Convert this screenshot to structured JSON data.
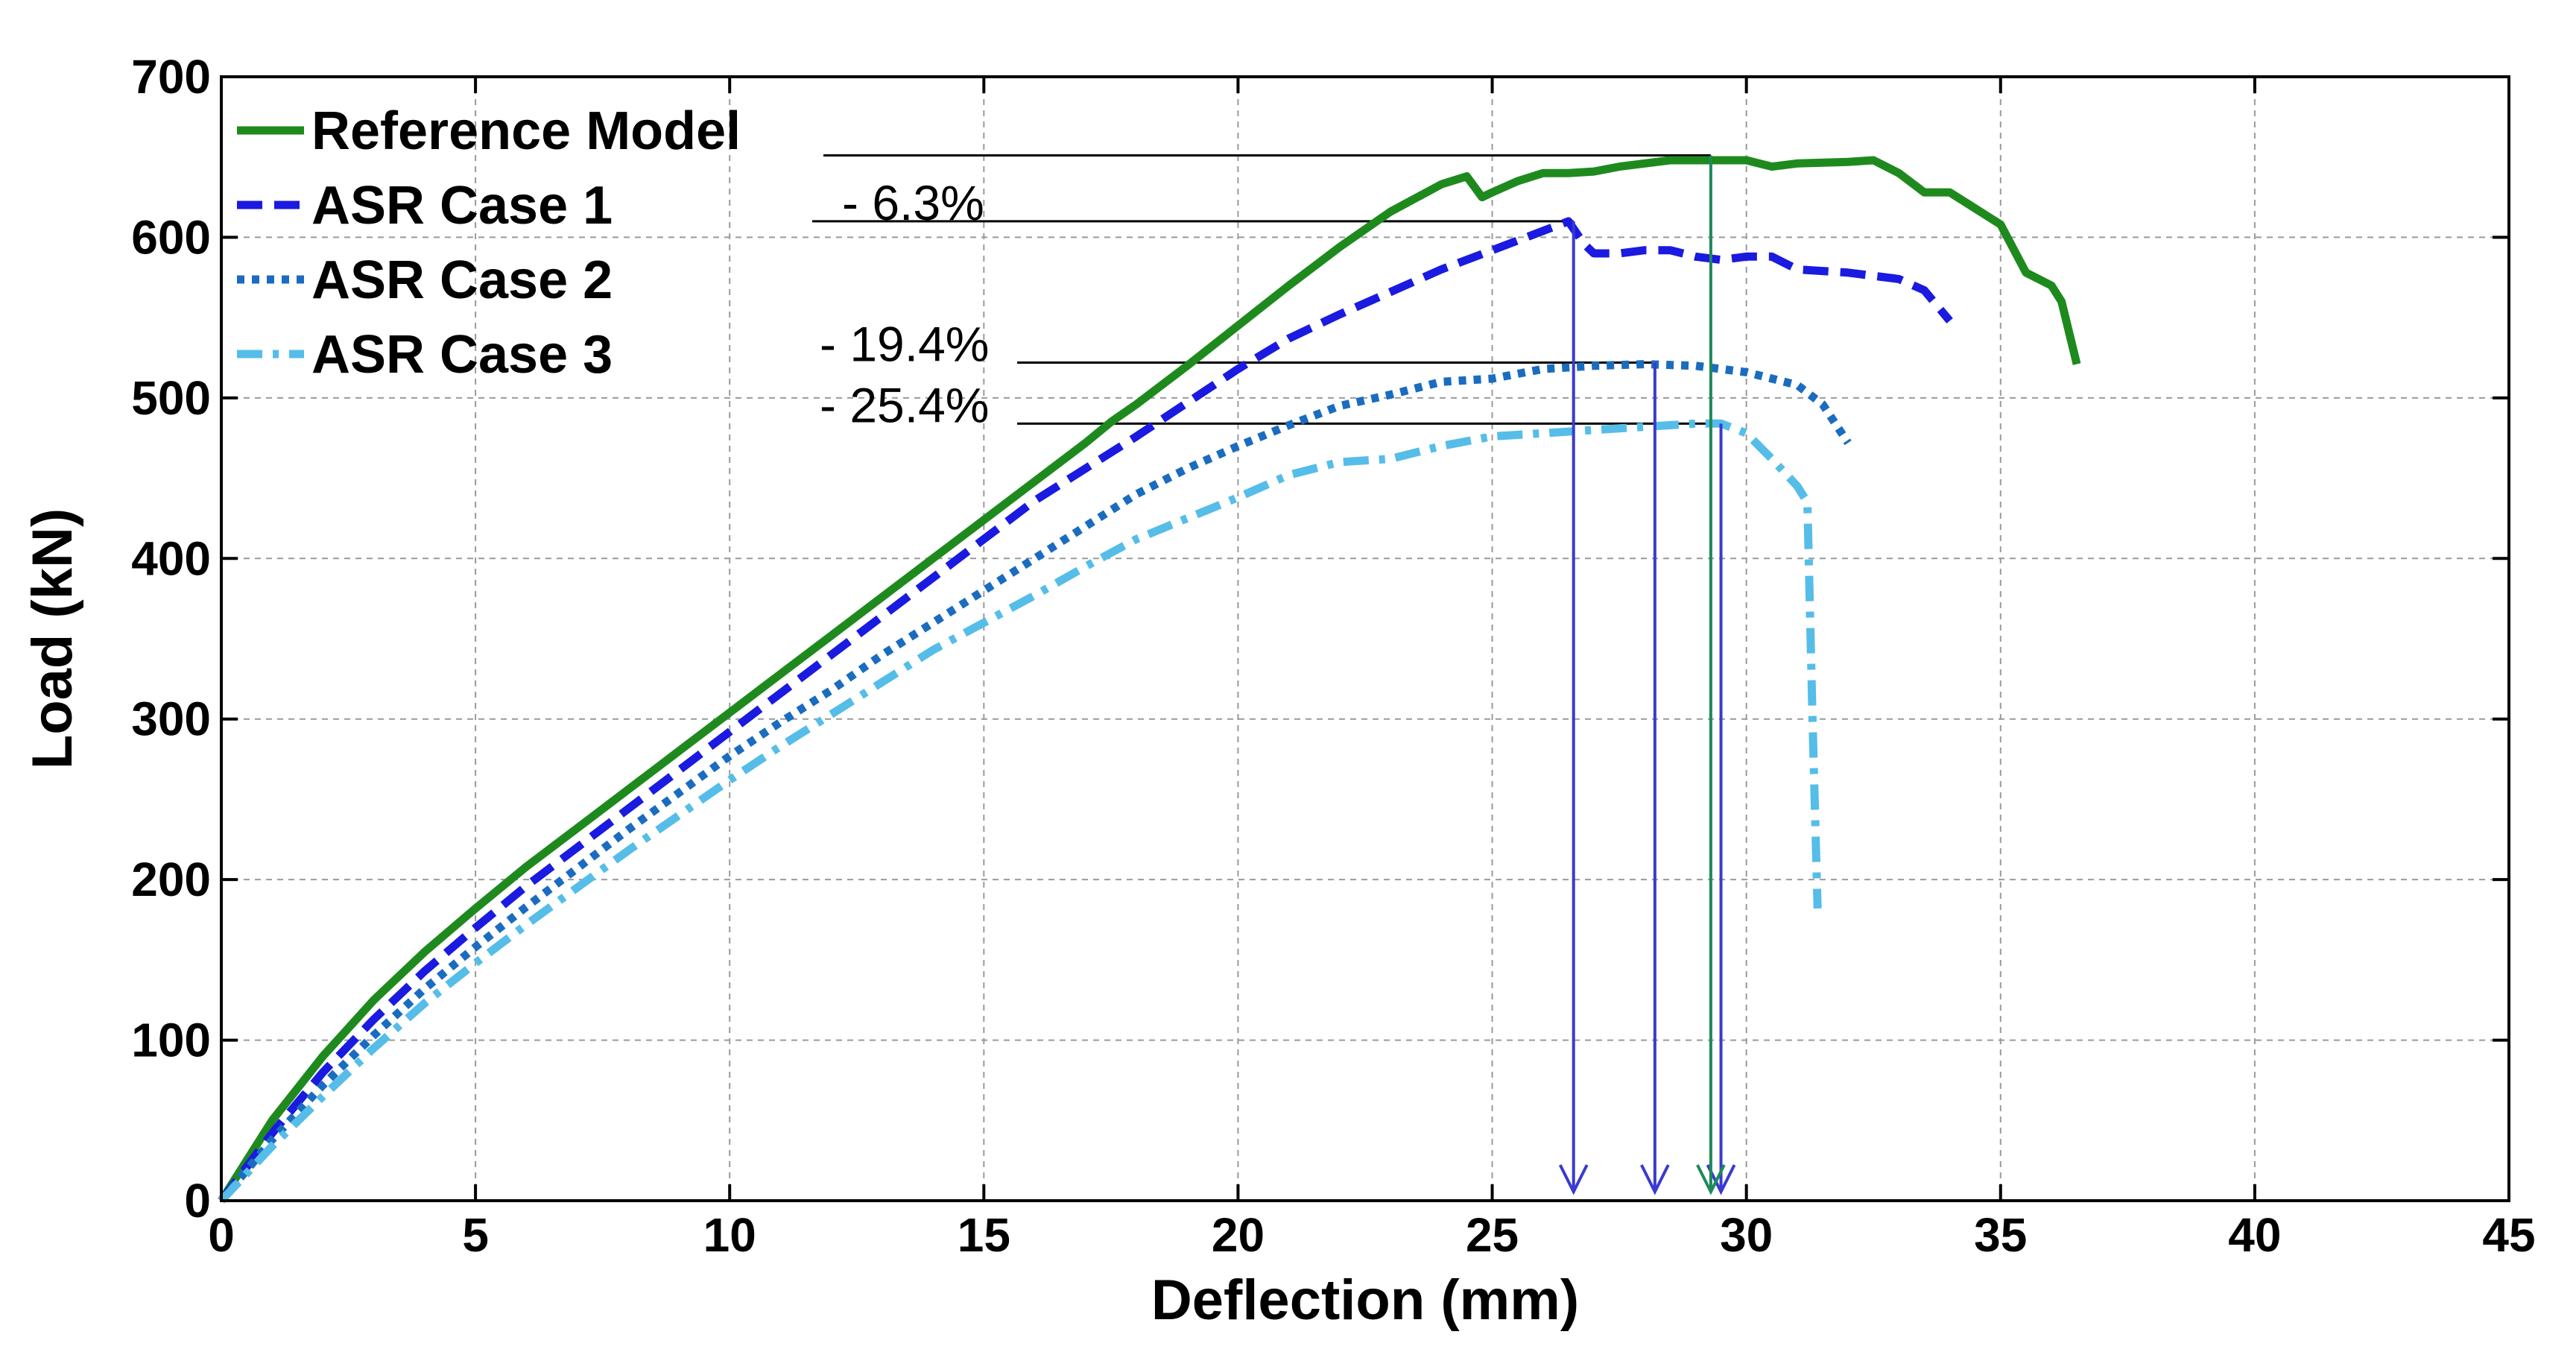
{
  "chart_data": {
    "type": "line",
    "title": "",
    "xlabel": "Deflection (mm)",
    "ylabel": "Load (kN)",
    "xlim": [
      0,
      45
    ],
    "ylim": [
      0,
      700
    ],
    "xticks": [
      0,
      5,
      10,
      15,
      20,
      25,
      30,
      35,
      40,
      45
    ],
    "yticks": [
      0,
      100,
      200,
      300,
      400,
      500,
      600,
      700
    ],
    "grid": true,
    "legend_position": "top-left",
    "series": [
      {
        "name": "Reference Model",
        "color": "#1e8a1e",
        "style": "solid",
        "x": [
          0,
          1,
          2,
          3,
          4,
          5,
          6,
          7,
          8,
          9,
          10,
          11,
          12,
          13,
          14,
          15,
          16,
          17,
          17.5,
          18,
          19,
          20,
          21,
          22,
          23,
          24,
          24.5,
          24.8,
          25,
          25.5,
          26,
          26.5,
          27,
          27.5,
          28,
          28.5,
          29,
          29.5,
          30,
          30.5,
          31,
          32,
          32.5,
          33,
          33.5,
          34,
          34.5,
          35,
          35.5,
          36,
          36.2,
          36.5
        ],
        "y": [
          0,
          50,
          90,
          125,
          155,
          182,
          208,
          232,
          256,
          280,
          304,
          328,
          352,
          376,
          400,
          424,
          448,
          472,
          485,
          496,
          520,
          545,
          570,
          594,
          616,
          633,
          638,
          625,
          628,
          635,
          640,
          640,
          641,
          644,
          646,
          648,
          648,
          648,
          648,
          644,
          646,
          647,
          648,
          640,
          628,
          628,
          618,
          608,
          578,
          570,
          560,
          521
        ]
      },
      {
        "name": "ASR Case 1",
        "color": "#1a1ae0",
        "style": "dashed",
        "x": [
          0,
          1,
          2,
          3,
          4,
          5,
          6,
          7,
          8,
          9,
          10,
          11,
          12,
          13,
          14,
          15,
          16,
          17,
          18,
          19,
          20,
          21,
          22,
          23,
          24,
          25,
          26,
          26.5,
          26.8,
          27,
          27.5,
          28,
          28.5,
          29,
          29.5,
          30,
          30.5,
          31,
          32,
          33,
          33.5,
          34
        ],
        "y": [
          0,
          42,
          80,
          113,
          143,
          170,
          196,
          220,
          244,
          268,
          292,
          316,
          340,
          364,
          388,
          412,
          436,
          456,
          476,
          497,
          518,
          537,
          552,
          566,
          580,
          592,
          604,
          610,
          596,
          590,
          590,
          592,
          592,
          588,
          586,
          588,
          588,
          580,
          578,
          574,
          567,
          548
        ]
      },
      {
        "name": "ASR Case 2",
        "color": "#1a6cc0",
        "style": "dotted",
        "x": [
          0,
          1,
          2,
          3,
          4,
          5,
          6,
          7,
          8,
          9,
          10,
          11,
          12,
          13,
          14,
          15,
          16,
          17,
          18,
          19,
          20,
          21,
          22,
          23,
          24,
          25,
          26,
          27,
          28,
          29,
          30,
          31,
          31.5,
          32
        ],
        "y": [
          0,
          38,
          72,
          103,
          132,
          158,
          183,
          207,
          231,
          254,
          277,
          298,
          318,
          340,
          360,
          380,
          400,
          420,
          440,
          456,
          470,
          483,
          495,
          502,
          510,
          512,
          518,
          520,
          521,
          520,
          516,
          508,
          496,
          472
        ]
      },
      {
        "name": "ASR Case 3",
        "color": "#55bde8",
        "style": "dashdot",
        "x": [
          0,
          1,
          2,
          3,
          4,
          5,
          6,
          7,
          8,
          9,
          10,
          11,
          12,
          13,
          14,
          15,
          16,
          17,
          18,
          19,
          20,
          21,
          22,
          23,
          24,
          25,
          26,
          27,
          28,
          29,
          29.5,
          30,
          30.5,
          31,
          31.2,
          31.3,
          31.4
        ],
        "y": [
          0,
          34,
          65,
          95,
          123,
          148,
          172,
          195,
          218,
          240,
          262,
          283,
          303,
          323,
          343,
          360,
          377,
          395,
          412,
          425,
          438,
          452,
          460,
          462,
          470,
          476,
          478,
          480,
          482,
          484,
          484,
          478,
          462,
          445,
          435,
          300,
          182
        ]
      }
    ],
    "annotations": [
      {
        "text": "- 6.3%",
        "peak_x": 26.6,
        "peak_y": 610
      },
      {
        "text": "- 19.4%",
        "peak_x": 28.2,
        "peak_y": 522
      },
      {
        "text": "- 25.4%",
        "peak_x": 29.5,
        "peak_y": 484
      }
    ],
    "reference_peak": {
      "x": 29.3,
      "y": 651
    },
    "arrow_targets_x": [
      26.6,
      28.2,
      29.3,
      29.5
    ]
  },
  "colors": {
    "grid": "#9a9a9a",
    "arrow_blue": "#3a3ad0",
    "arrow_green": "#1e8a5a"
  }
}
